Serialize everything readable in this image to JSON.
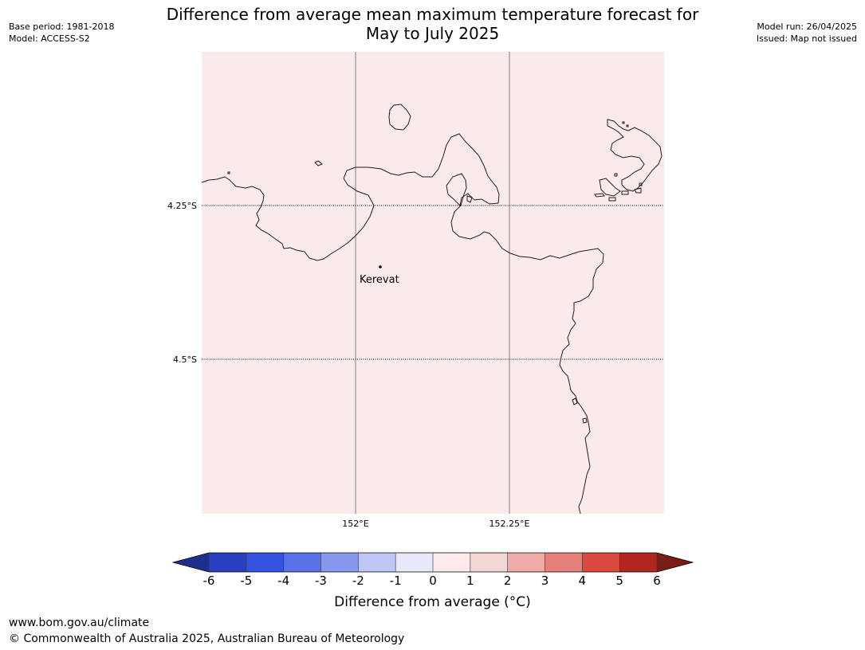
{
  "title_line1": "Difference from average mean maximum temperature forecast for",
  "title_line2": "May to July 2025",
  "meta_left": [
    "Base period: 1981-2018",
    "Model: ACCESS-S2"
  ],
  "meta_right": [
    "Model run: 26/04/2025",
    "Issued: Map not issued"
  ],
  "map": {
    "fill_color": "#fbeaea",
    "lat_labels": [
      "4.25°S",
      "4.5°S"
    ],
    "lon_labels": [
      "152°E",
      "152.25°E"
    ],
    "place": {
      "name": "Kerevat",
      "marker": "dot"
    }
  },
  "colorbar": {
    "ticks": [
      "-6",
      "-5",
      "-4",
      "-3",
      "-2",
      "-1",
      "0",
      "1",
      "2",
      "3",
      "4",
      "5",
      "6"
    ],
    "colors": [
      "#1f2e8a",
      "#2a3fbf",
      "#3451e0",
      "#5a70e6",
      "#8797ee",
      "#bfc7f6",
      "#e8eafc",
      "#fcebea",
      "#f2d6d3",
      "#eeaba7",
      "#e6807a",
      "#db4a3e",
      "#b1261f",
      "#7a1d17"
    ],
    "label": "Difference from average ($^\\circ$C)",
    "label_display": "Difference from average (°C)"
  },
  "footer": {
    "url": "www.bom.gov.au/climate",
    "copyright": "© Commonwealth of Australia 2025, Australian Bureau of Meteorology"
  }
}
